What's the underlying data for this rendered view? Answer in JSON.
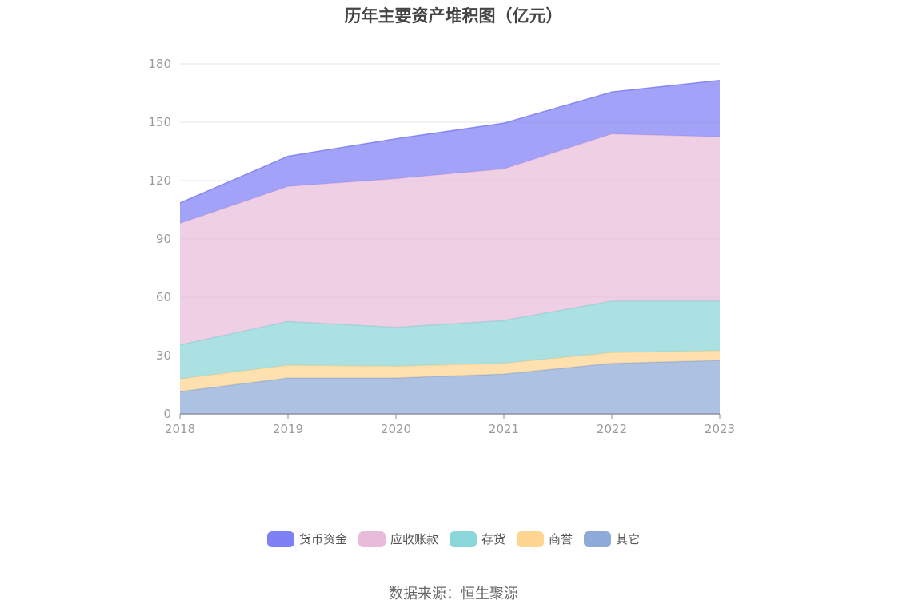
{
  "title": "历年主要资产堆积图（亿元）",
  "source": "数据来源：恒生聚源",
  "chart_data": {
    "type": "area",
    "stacked": true,
    "title": "历年主要资产堆积图（亿元）",
    "xlabel": "",
    "ylabel": "",
    "x": [
      "2018",
      "2019",
      "2020",
      "2021",
      "2022",
      "2023"
    ],
    "ylim": [
      0,
      180
    ],
    "yticks": [
      0,
      30,
      60,
      90,
      120,
      150,
      180
    ],
    "grid": true,
    "legend_position": "bottom",
    "series": [
      {
        "name": "其它",
        "color": "#8eaad8",
        "values": [
          11.5,
          18.5,
          18.5,
          20.5,
          26.0,
          27.5
        ]
      },
      {
        "name": "商誉",
        "color": "#ffd591",
        "values": [
          6.5,
          6.5,
          6.0,
          5.5,
          5.5,
          5.0
        ]
      },
      {
        "name": "存货",
        "color": "#8ad6d8",
        "values": [
          17.5,
          22.5,
          20.0,
          22.0,
          26.5,
          25.5
        ]
      },
      {
        "name": "应收账款",
        "color": "#e8bcd9",
        "values": [
          62.5,
          69.5,
          76.5,
          78.0,
          86.0,
          84.5
        ]
      },
      {
        "name": "货币资金",
        "color": "#7e80f5",
        "values": [
          10.5,
          15.5,
          20.5,
          23.5,
          21.5,
          29.0
        ]
      }
    ]
  }
}
